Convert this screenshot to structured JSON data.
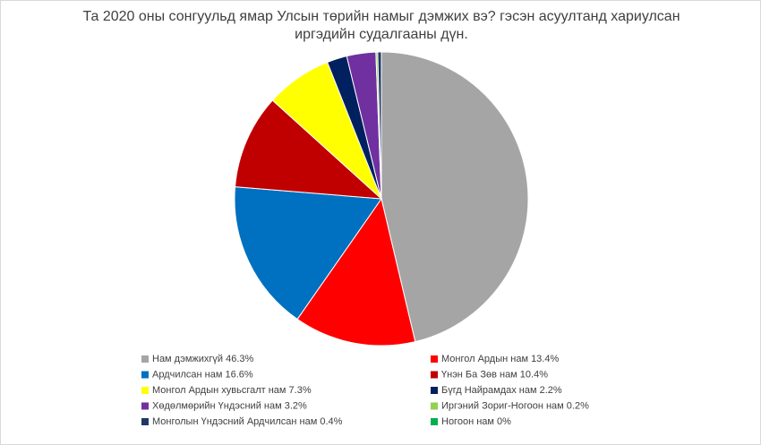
{
  "chart_data": {
    "type": "pie",
    "title": "Та 2020 оны сонгуульд ямар Улсын төрийн намыг дэмжих вэ? гэсэн асуултанд хариулсан иргэдийн судалгааны дүн.",
    "categories": [
      "Нам дэмжихгүй 46.3%",
      "Монгол Ардын нам 13.4%",
      "Ардчилсан нам 16.6%",
      "Үнэн Ба Зөв нам 10.4%",
      "Монгол Ардын хувьсгалт нам 7.3%",
      "Бүгд Найрамдах нам 2.2%",
      "Хөдөлмөрийн Үндэсний нам 3.2%",
      "Иргэний Зориг-Ногоон нам 0.2%",
      "Монголын Үндэсний Ардчилсан нам 0.4%",
      "Ногоон нам 0%"
    ],
    "values": [
      46.3,
      13.4,
      16.6,
      10.4,
      7.3,
      2.2,
      3.2,
      0.2,
      0.4,
      0
    ],
    "colors": [
      "#a5a5a5",
      "#ff0000",
      "#0070c0",
      "#c00000",
      "#ffff00",
      "#002060",
      "#7030a0",
      "#92d050",
      "#1f3864",
      "#00b050"
    ]
  }
}
